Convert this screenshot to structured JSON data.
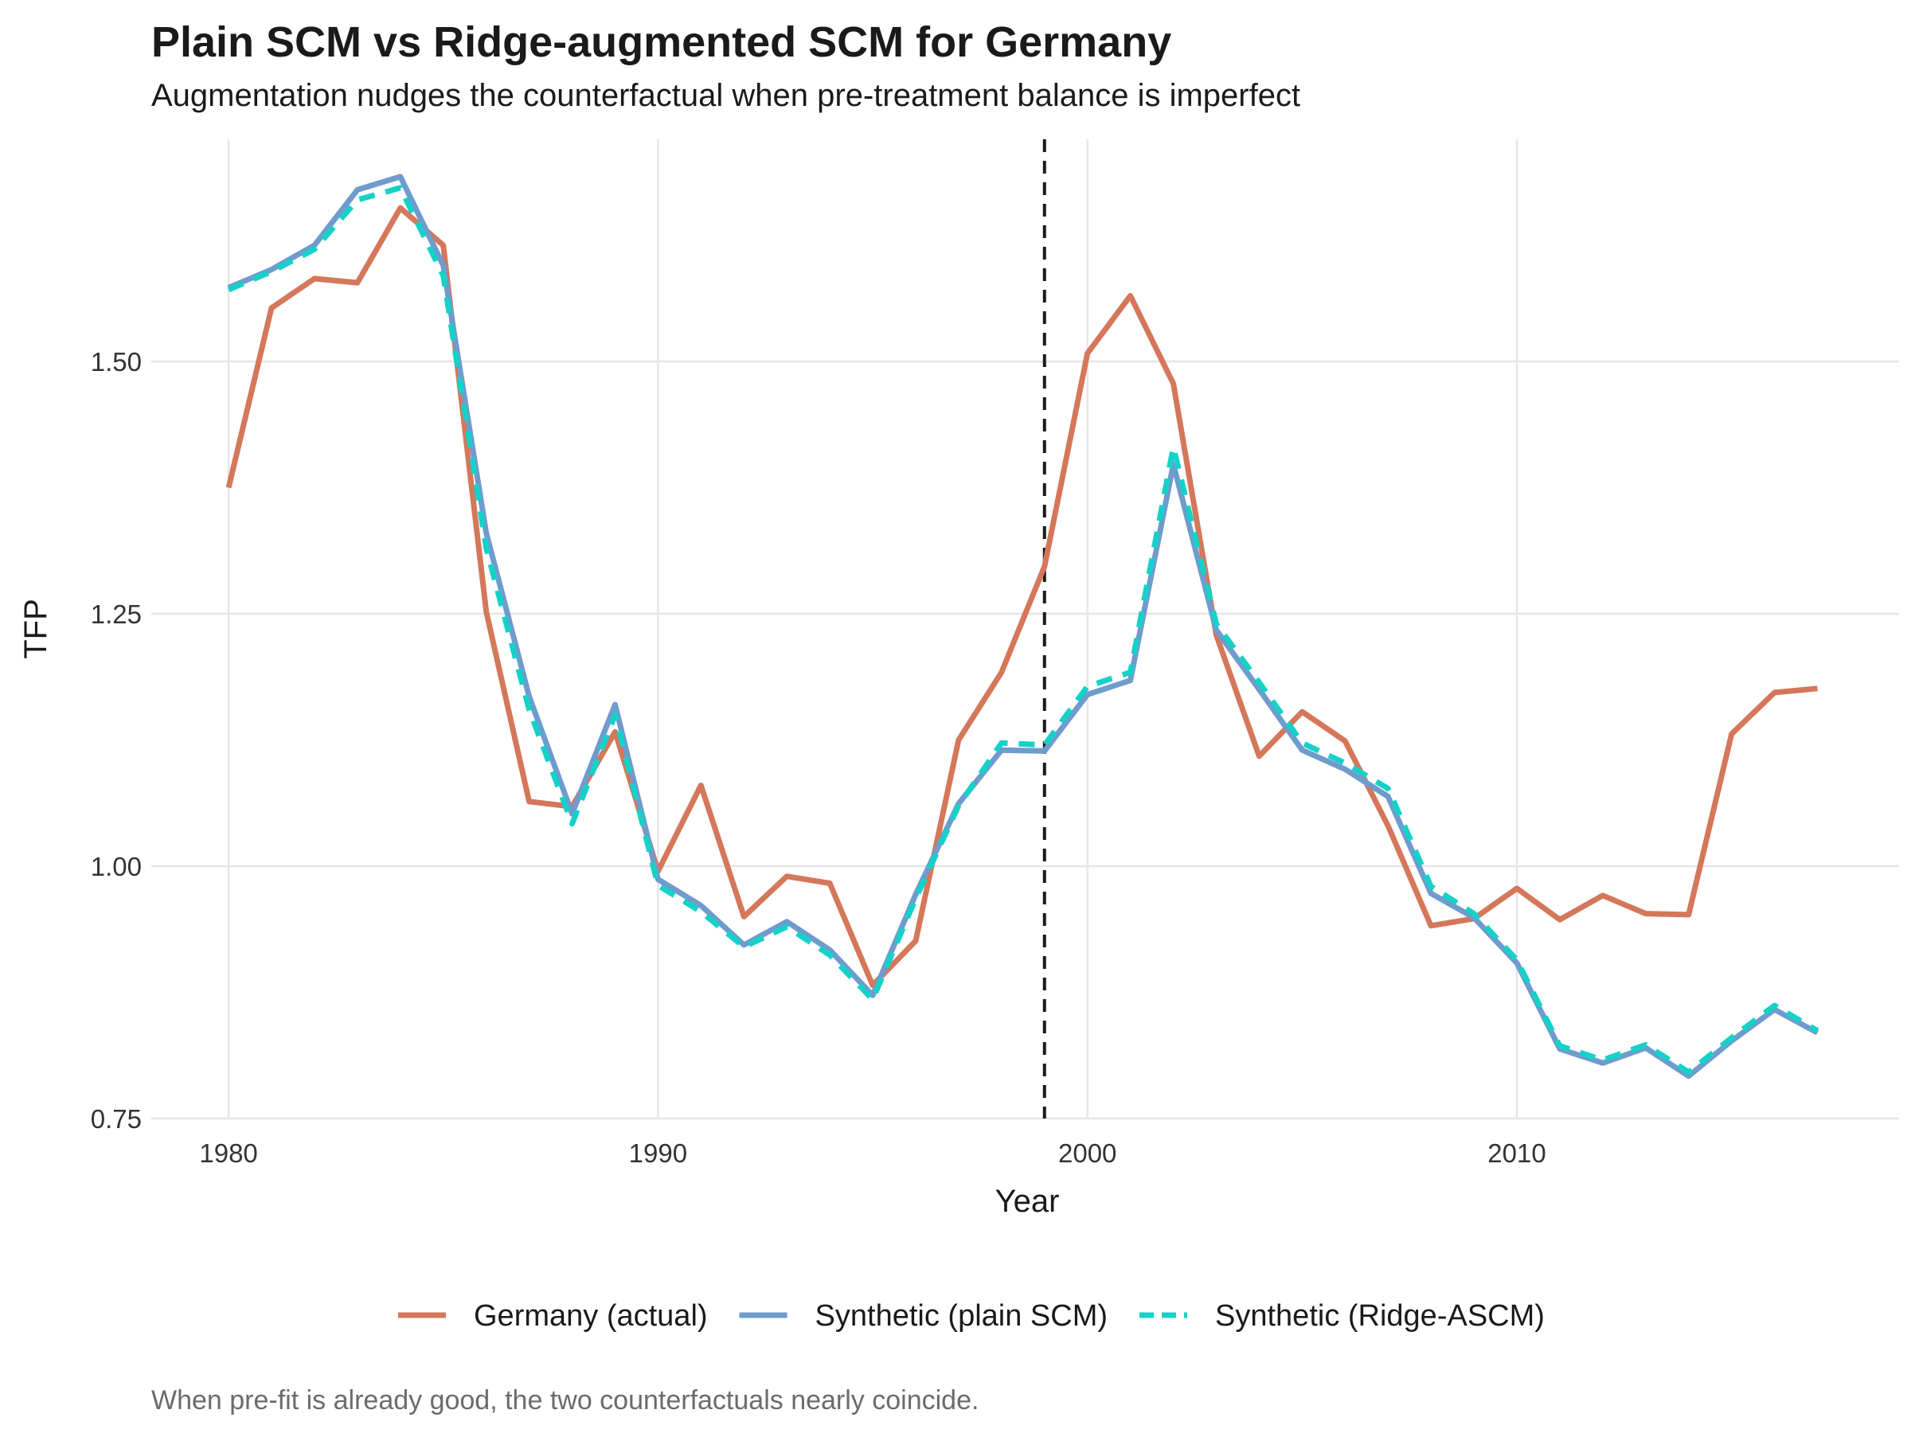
{
  "chart_data": {
    "type": "line",
    "title": "Plain SCM vs Ridge-augmented SCM for Germany",
    "subtitle": "Augmentation nudges the counterfactual when pre-treatment balance is imperfect",
    "caption": "When pre-fit is already good, the two counterfactuals nearly coincide.",
    "xlabel": "Year",
    "ylabel": "TFP",
    "xlim": [
      1978.2,
      2018.9
    ],
    "ylim": [
      0.75,
      1.72
    ],
    "x_ticks": [
      1980,
      1990,
      2000,
      2010
    ],
    "x_tick_labels": [
      "1980",
      "1990",
      "2000",
      "2010"
    ],
    "y_ticks": [
      0.75,
      1.0,
      1.25,
      1.5
    ],
    "y_tick_labels": [
      "0.75",
      "1.00",
      "1.25",
      "1.50"
    ],
    "grid": true,
    "legend_position": "bottom",
    "treatment_year": 1999,
    "x": [
      1980,
      1981,
      1982,
      1983,
      1984,
      1985,
      1986,
      1987,
      1988,
      1989,
      1990,
      1991,
      1992,
      1993,
      1994,
      1995,
      1996,
      1997,
      1998,
      1999,
      2000,
      2001,
      2002,
      2003,
      2004,
      2005,
      2006,
      2007,
      2008,
      2009,
      2010,
      2011,
      2012,
      2013,
      2014,
      2015,
      2016,
      2017
    ],
    "series": [
      {
        "name": "Germany (actual)",
        "color": "#D4775A",
        "dash": "solid",
        "values": [
          1.375,
          1.553,
          1.582,
          1.578,
          1.652,
          1.615,
          1.252,
          1.064,
          1.059,
          1.133,
          0.995,
          1.08,
          0.95,
          0.99,
          0.983,
          0.882,
          0.926,
          1.125,
          1.192,
          1.297,
          1.508,
          1.565,
          1.478,
          1.229,
          1.109,
          1.153,
          1.124,
          1.04,
          0.941,
          0.948,
          0.978,
          0.947,
          0.971,
          0.953,
          0.952,
          1.131,
          1.172,
          1.176
        ]
      },
      {
        "name": "Synthetic (plain SCM)",
        "color": "#6F9BCD",
        "dash": "solid",
        "values": [
          1.573,
          1.591,
          1.615,
          1.67,
          1.683,
          1.595,
          1.33,
          1.168,
          1.052,
          1.16,
          0.987,
          0.961,
          0.922,
          0.945,
          0.917,
          0.872,
          0.972,
          1.062,
          1.115,
          1.114,
          1.17,
          1.184,
          1.398,
          1.234,
          1.175,
          1.115,
          1.096,
          1.069,
          0.973,
          0.949,
          0.904,
          0.819,
          0.805,
          0.82,
          0.792,
          0.827,
          0.858,
          0.835
        ]
      },
      {
        "name": "Synthetic (Ridge-ASCM)",
        "color": "#16D1C8",
        "dash": "dashed",
        "values": [
          1.571,
          1.589,
          1.611,
          1.66,
          1.672,
          1.585,
          1.315,
          1.155,
          1.042,
          1.15,
          0.981,
          0.955,
          0.92,
          0.94,
          0.912,
          0.868,
          0.968,
          1.06,
          1.122,
          1.12,
          1.178,
          1.192,
          1.415,
          1.24,
          1.182,
          1.122,
          1.102,
          1.077,
          0.98,
          0.953,
          0.907,
          0.822,
          0.808,
          0.823,
          0.796,
          0.83,
          0.862,
          0.837
        ]
      }
    ]
  }
}
